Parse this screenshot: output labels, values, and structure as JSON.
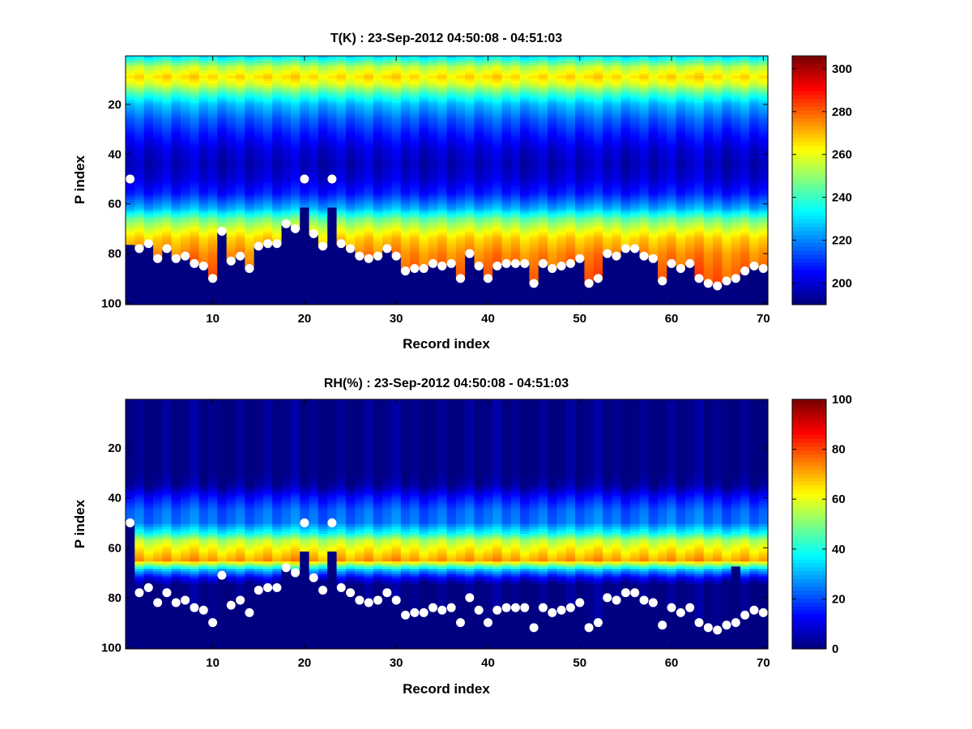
{
  "chart_data": [
    {
      "type": "heatmap",
      "title": "T(K) : 23-Sep-2012 04:50:08 - 04:51:03",
      "xlabel": "Record index",
      "ylabel": "P index",
      "xlim": [
        1,
        70
      ],
      "ylim": [
        1,
        100
      ],
      "y_reversed": true,
      "xticks": [
        10,
        20,
        30,
        40,
        50,
        60,
        70
      ],
      "yticks": [
        20,
        40,
        60,
        80,
        100
      ],
      "colormap": "jet",
      "clim": [
        190,
        306
      ],
      "colorbar_ticks": [
        200,
        220,
        240,
        260,
        280,
        300
      ],
      "fill_value": 190,
      "profile": {
        "p": [
          1,
          5,
          9,
          12,
          16,
          20,
          26,
          32,
          38,
          44,
          50,
          56,
          62,
          66,
          70,
          74,
          80,
          86,
          92,
          100
        ],
        "value": [
          232,
          255,
          266,
          258,
          240,
          226,
          215,
          207,
          200,
          197,
          200,
          208,
          225,
          245,
          258,
          268,
          276,
          280,
          283,
          286
        ]
      },
      "fill_start_from_marker_offset": 1,
      "anomalies": [
        {
          "record": 20,
          "fill_start": 62
        },
        {
          "record": 23,
          "fill_start": 62
        },
        {
          "record": 11,
          "fill_start": 72
        },
        {
          "record": 1,
          "fill_start": 77
        }
      ],
      "markers": {
        "records": [
          1,
          2,
          3,
          4,
          5,
          6,
          7,
          8,
          9,
          10,
          11,
          12,
          13,
          14,
          15,
          16,
          17,
          18,
          19,
          20,
          21,
          22,
          23,
          24,
          25,
          26,
          27,
          28,
          29,
          30,
          31,
          32,
          33,
          34,
          35,
          36,
          37,
          38,
          39,
          40,
          41,
          42,
          43,
          44,
          45,
          46,
          47,
          48,
          49,
          50,
          51,
          52,
          53,
          54,
          55,
          56,
          57,
          58,
          59,
          60,
          61,
          62,
          63,
          64,
          65,
          66,
          67,
          68,
          69,
          70
        ],
        "p_index": [
          50,
          78,
          76,
          82,
          78,
          82,
          81,
          84,
          85,
          90,
          71,
          83,
          81,
          86,
          77,
          76,
          76,
          68,
          70,
          50,
          72,
          77,
          50,
          76,
          78,
          81,
          82,
          81,
          78,
          81,
          87,
          86,
          86,
          84,
          85,
          84,
          90,
          80,
          85,
          90,
          85,
          84,
          84,
          84,
          92,
          84,
          86,
          85,
          84,
          82,
          92,
          90,
          80,
          81,
          78,
          78,
          81,
          82,
          91,
          84,
          86,
          84,
          90,
          92,
          93,
          91,
          90,
          87,
          85,
          86
        ],
        "color": "#ffffff"
      }
    },
    {
      "type": "heatmap",
      "title": "RH(%) : 23-Sep-2012 04:50:08 - 04:51:03",
      "xlabel": "Record index",
      "ylabel": "P index",
      "xlim": [
        1,
        70
      ],
      "ylim": [
        1,
        100
      ],
      "y_reversed": true,
      "xticks": [
        10,
        20,
        30,
        40,
        50,
        60,
        70
      ],
      "yticks": [
        20,
        40,
        60,
        80,
        100
      ],
      "colormap": "jet",
      "clim": [
        0,
        100
      ],
      "colorbar_ticks": [
        0,
        20,
        40,
        60,
        80,
        100
      ],
      "fill_value": 0,
      "profile": {
        "p": [
          1,
          30,
          35,
          40,
          45,
          50,
          54,
          57,
          60,
          63,
          65,
          67,
          69,
          72,
          75,
          100
        ],
        "value": [
          0,
          0,
          3,
          14,
          22,
          24,
          38,
          55,
          62,
          68,
          72,
          50,
          30,
          12,
          0,
          0
        ]
      },
      "fill_start_from_marker_offset": 0,
      "anomalies": [
        {
          "record": 20,
          "fill_start": 62
        },
        {
          "record": 23,
          "fill_start": 62
        },
        {
          "record": 67,
          "fill_start": 68
        }
      ],
      "markers": {
        "records": [
          1,
          2,
          3,
          4,
          5,
          6,
          7,
          8,
          9,
          10,
          11,
          12,
          13,
          14,
          15,
          16,
          17,
          18,
          19,
          20,
          21,
          22,
          23,
          24,
          25,
          26,
          27,
          28,
          29,
          30,
          31,
          32,
          33,
          34,
          35,
          36,
          37,
          38,
          39,
          40,
          41,
          42,
          43,
          44,
          45,
          46,
          47,
          48,
          49,
          50,
          51,
          52,
          53,
          54,
          55,
          56,
          57,
          58,
          59,
          60,
          61,
          62,
          63,
          64,
          65,
          66,
          67,
          68,
          69,
          70
        ],
        "p_index": [
          50,
          78,
          76,
          82,
          78,
          82,
          81,
          84,
          85,
          90,
          71,
          83,
          81,
          86,
          77,
          76,
          76,
          68,
          70,
          50,
          72,
          77,
          50,
          76,
          78,
          81,
          82,
          81,
          78,
          81,
          87,
          86,
          86,
          84,
          85,
          84,
          90,
          80,
          85,
          90,
          85,
          84,
          84,
          84,
          92,
          84,
          86,
          85,
          84,
          82,
          92,
          90,
          80,
          81,
          78,
          78,
          81,
          82,
          91,
          84,
          86,
          84,
          90,
          92,
          93,
          91,
          90,
          87,
          85,
          86
        ],
        "color": "#ffffff"
      }
    }
  ]
}
